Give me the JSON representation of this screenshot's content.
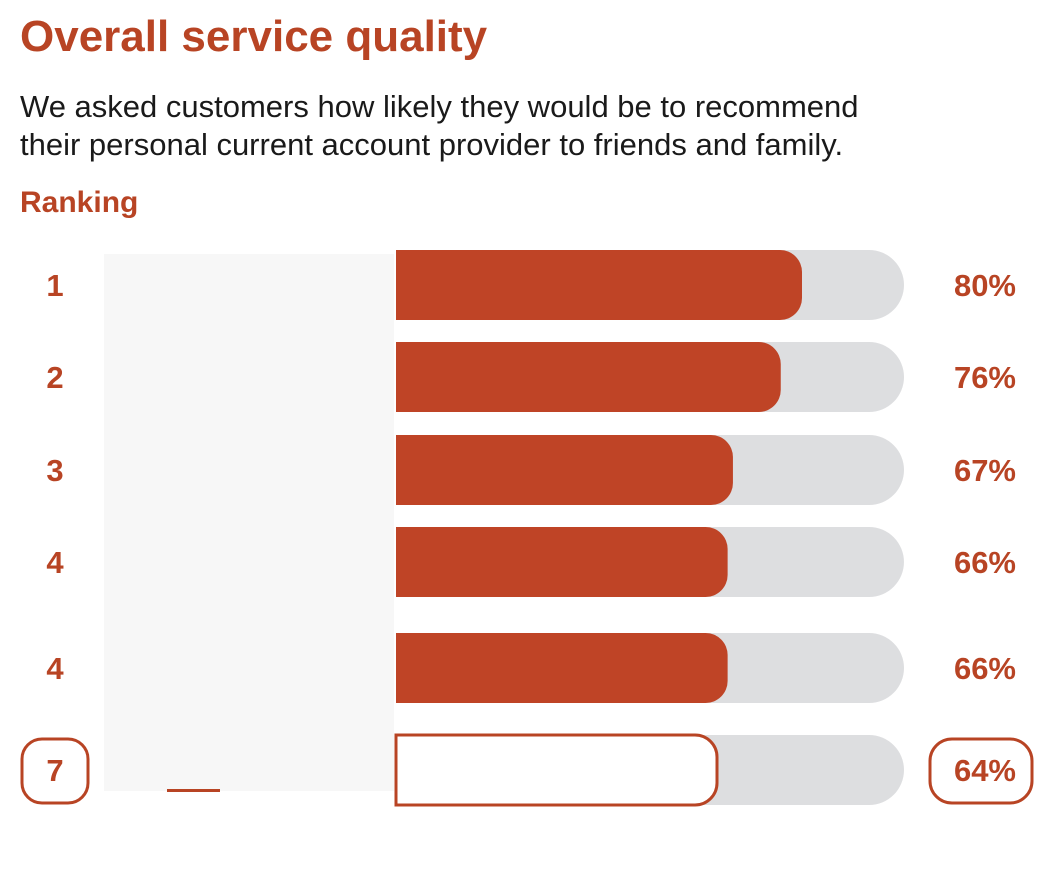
{
  "title": "Overall service quality",
  "subtitle_lines": [
    "We asked customers how likely they would be to recommend",
    "their personal current account provider to friends and family."
  ],
  "ranking_label": "Ranking",
  "colors": {
    "accent": "#b84424",
    "bar_fill": "#bf4426",
    "track": "#dddee0",
    "mask": "#f7f7f7",
    "highlight_fill": "#ffffff"
  },
  "chart_data": {
    "type": "bar",
    "orientation": "horizontal",
    "xlim": [
      0,
      100
    ],
    "ranks": [
      "1",
      "2",
      "3",
      "4",
      "4",
      "7"
    ],
    "values": [
      80,
      76,
      67,
      66,
      66,
      64
    ],
    "value_labels": [
      "80%",
      "76%",
      "67%",
      "66%",
      "66%",
      "64%"
    ],
    "highlighted_index": 5
  }
}
